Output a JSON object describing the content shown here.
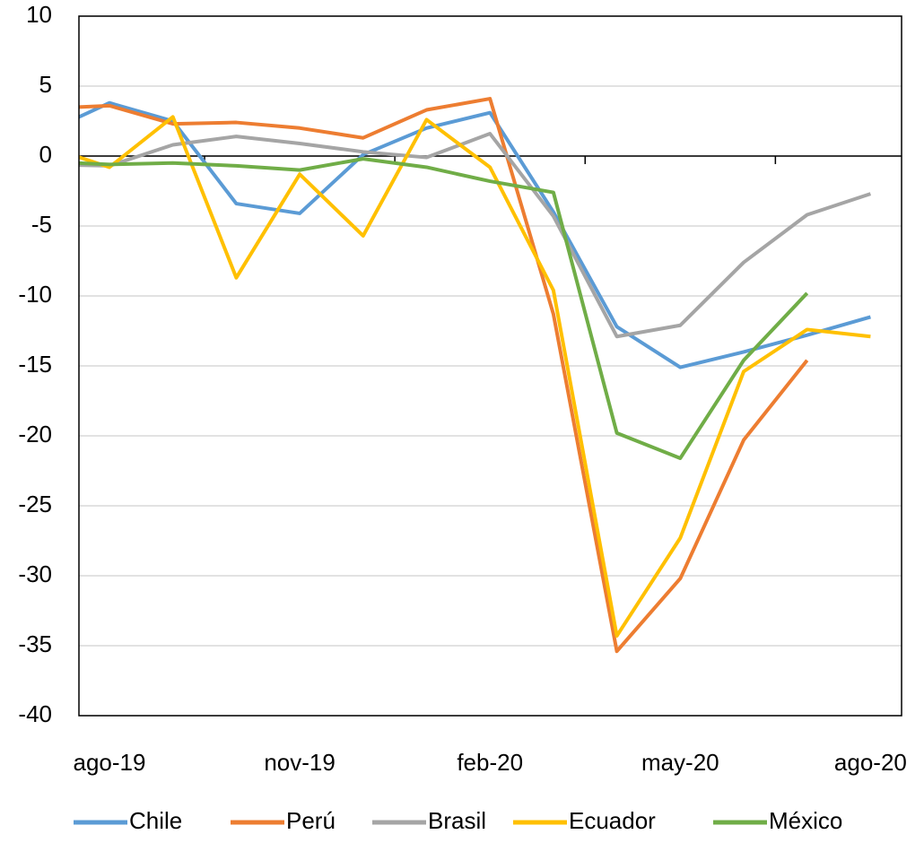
{
  "chart_data": {
    "type": "line",
    "categories": [
      null,
      "ago-19",
      null,
      null,
      "nov-19",
      null,
      null,
      "feb-20",
      null,
      null,
      "may-20",
      null,
      null,
      "ago-20"
    ],
    "series": [
      {
        "name": "Chile",
        "color": "#5b9bd5",
        "values": [
          1.7,
          3.8,
          2.5,
          -3.4,
          -4.1,
          0.1,
          2.0,
          3.1,
          -4.0,
          -12.2,
          -15.1,
          -14.0,
          -12.8,
          -11.5
        ]
      },
      {
        "name": "Perú",
        "color": "#ed7d31",
        "values": [
          3.4,
          3.6,
          2.3,
          2.4,
          2.0,
          1.3,
          3.3,
          4.1,
          -11.3,
          -35.4,
          -30.2,
          -20.3,
          -14.6,
          null
        ]
      },
      {
        "name": "Brasil",
        "color": "#a5a5a5",
        "values": [
          -0.6,
          -0.7,
          0.8,
          1.4,
          0.9,
          0.3,
          -0.1,
          1.6,
          -4.3,
          -12.9,
          -12.1,
          -7.6,
          -4.2,
          -2.7
        ]
      },
      {
        "name": "Ecuador",
        "color": "#ffc000",
        "values": [
          0.7,
          -0.8,
          2.8,
          -8.7,
          -1.3,
          -5.7,
          2.6,
          -0.8,
          -9.6,
          -34.3,
          -27.3,
          -15.4,
          -12.4,
          -12.9
        ]
      },
      {
        "name": "México",
        "color": "#70ad47",
        "values": [
          -0.4,
          -0.6,
          -0.5,
          -0.7,
          -1.0,
          -0.2,
          -0.8,
          -1.8,
          -2.6,
          -19.8,
          -21.6,
          -14.6,
          -9.8,
          null
        ]
      }
    ],
    "ylim": [
      -40,
      10
    ],
    "yticks": [
      -40,
      -35,
      -30,
      -25,
      -20,
      -15,
      -10,
      -5,
      0,
      5,
      10
    ],
    "grid": true,
    "legend": "bottom"
  }
}
